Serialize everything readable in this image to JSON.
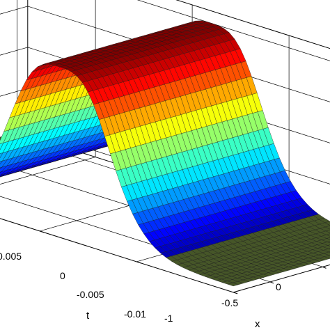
{
  "chart_data": {
    "type": "surface",
    "title": "",
    "xlabel": "x",
    "ylabel": "t",
    "zlabel": "",
    "x_ticks": [
      "-1",
      "-0.5",
      "0"
    ],
    "t_ticks": [
      "-0.01",
      "-0.005",
      "0",
      "0.005"
    ],
    "xlim": [
      -1.1,
      0.35
    ],
    "tlim": [
      -0.01,
      0.0085
    ],
    "zlim": [
      -1.15,
      3.3
    ],
    "surface": {
      "description_values": {
        "base_level": -1.0,
        "peak_level": 3.0,
        "pulse_center_t": -0.001,
        "pulse_half_width_t": 0.0024
      }
    },
    "grid": true,
    "colormap": "jet"
  }
}
